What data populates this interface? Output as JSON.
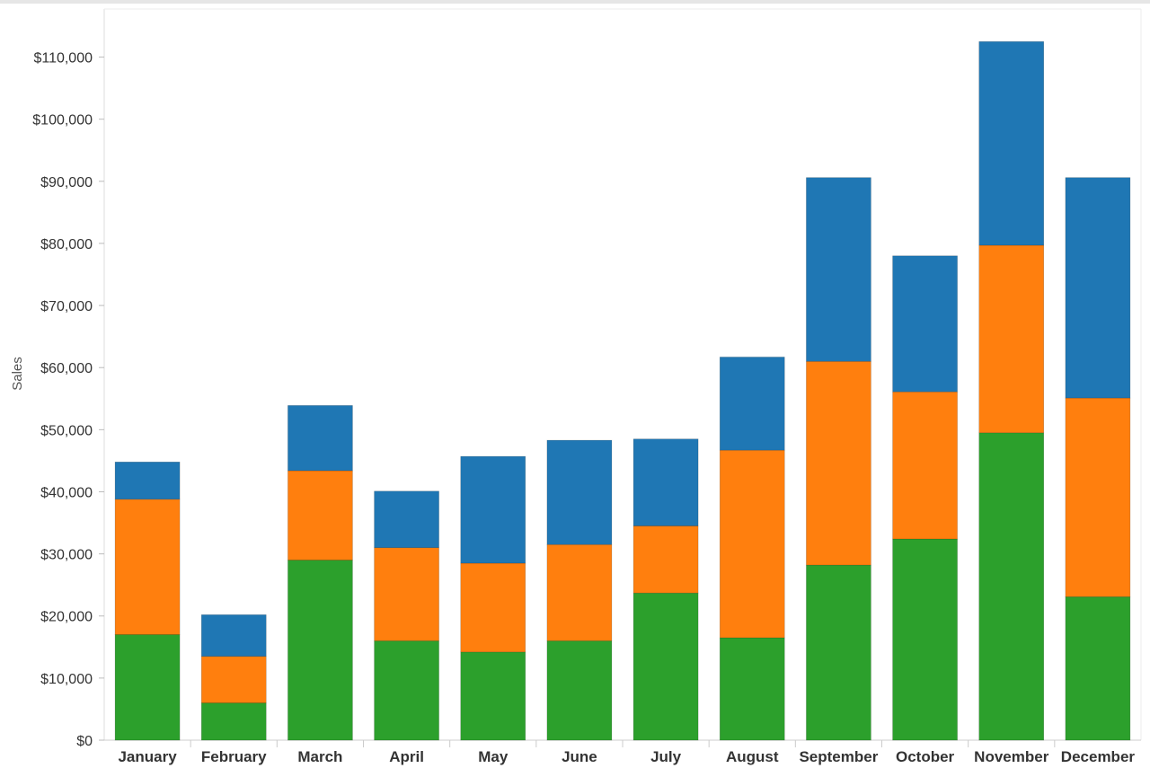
{
  "chart_data": {
    "type": "bar",
    "stacked": true,
    "ylabel": "Sales",
    "ylim": [
      0,
      117000
    ],
    "ytick_values": [
      0,
      10000,
      20000,
      30000,
      40000,
      50000,
      60000,
      70000,
      80000,
      90000,
      100000,
      110000
    ],
    "ytick_labels": [
      "$0",
      "$10,000",
      "$20,000",
      "$30,000",
      "$40,000",
      "$50,000",
      "$60,000",
      "$70,000",
      "$80,000",
      "$90,000",
      "$100,000",
      "$110,000"
    ],
    "categories": [
      "January",
      "February",
      "March",
      "April",
      "May",
      "June",
      "July",
      "August",
      "September",
      "October",
      "November",
      "December"
    ],
    "series": [
      {
        "color": "#2ca02c",
        "values": [
          17000,
          6000,
          29000,
          16000,
          14200,
          16000,
          23700,
          16500,
          28200,
          32400,
          49500,
          23100
        ]
      },
      {
        "color": "#ff7f0e",
        "values": [
          21800,
          7500,
          14400,
          15000,
          14300,
          15500,
          10800,
          30200,
          32800,
          23700,
          30200,
          32000
        ]
      },
      {
        "color": "#1f77b4",
        "values": [
          6000,
          6700,
          10500,
          9100,
          17200,
          16800,
          14000,
          15000,
          29600,
          21900,
          32800,
          35500
        ]
      }
    ],
    "grid": false,
    "legend": "none"
  }
}
